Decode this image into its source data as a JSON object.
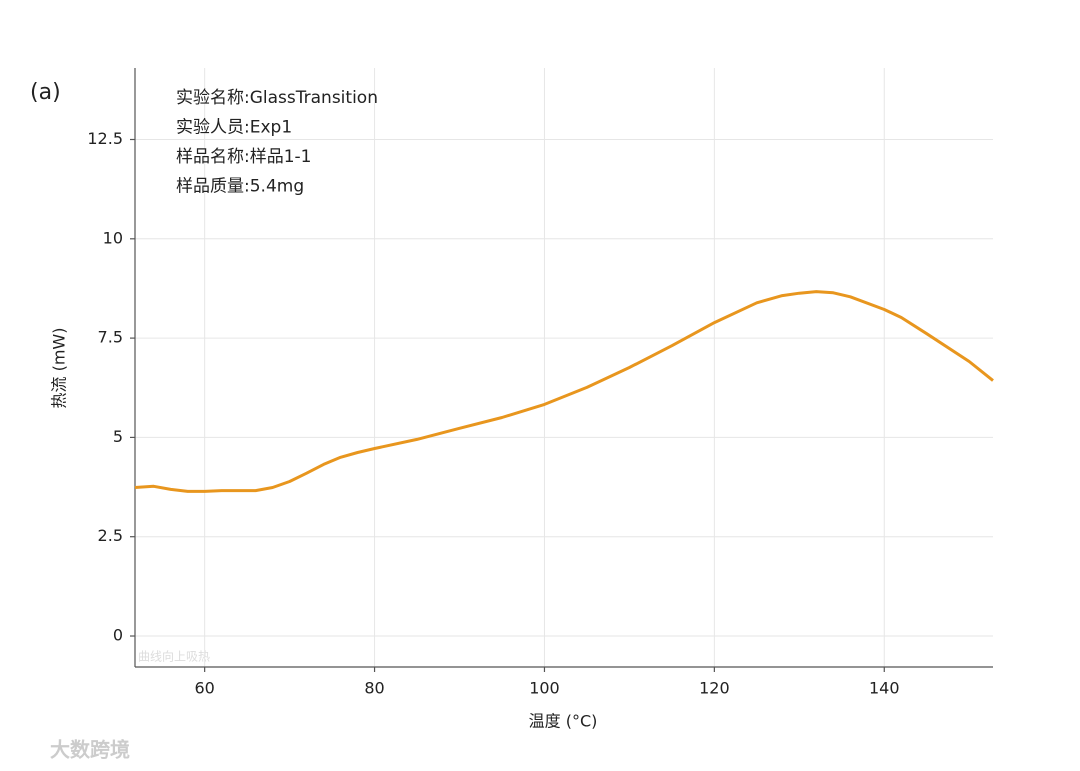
{
  "chart_data": {
    "type": "line",
    "panel_label": "(a)",
    "annotations": [
      "实验名称:GlassTransition",
      "实验人员:Exp1",
      "样品名称:样品1-1",
      "样品质量:5.4mg"
    ],
    "note": "曲线向上吸热",
    "xlabel": "温度 (°C)",
    "ylabel": "热流 (mW)",
    "x": [
      51.8,
      54,
      56,
      58,
      60,
      62,
      64,
      66,
      68,
      70,
      72,
      74,
      76,
      78,
      80,
      85,
      90,
      95,
      100,
      105,
      110,
      115,
      120,
      125,
      128,
      130,
      132,
      134,
      136,
      140,
      142,
      145,
      150,
      152.8
    ],
    "values": [
      3.74,
      3.77,
      3.69,
      3.64,
      3.64,
      3.66,
      3.66,
      3.66,
      3.74,
      3.89,
      4.1,
      4.32,
      4.5,
      4.62,
      4.72,
      4.95,
      5.23,
      5.5,
      5.83,
      6.26,
      6.76,
      7.31,
      7.89,
      8.39,
      8.57,
      8.63,
      8.67,
      8.64,
      8.54,
      8.22,
      8.02,
      7.61,
      6.91,
      6.43
    ],
    "color": "#e8961e",
    "xlim": [
      51.8,
      152.8
    ],
    "xticks": [
      60,
      80,
      100,
      120,
      140
    ],
    "ylim": [
      -0.78,
      14.3
    ],
    "yticks": [
      0,
      2.5,
      5,
      7.5,
      10,
      12.5
    ],
    "grid": true
  },
  "watermark": "大数跨境"
}
